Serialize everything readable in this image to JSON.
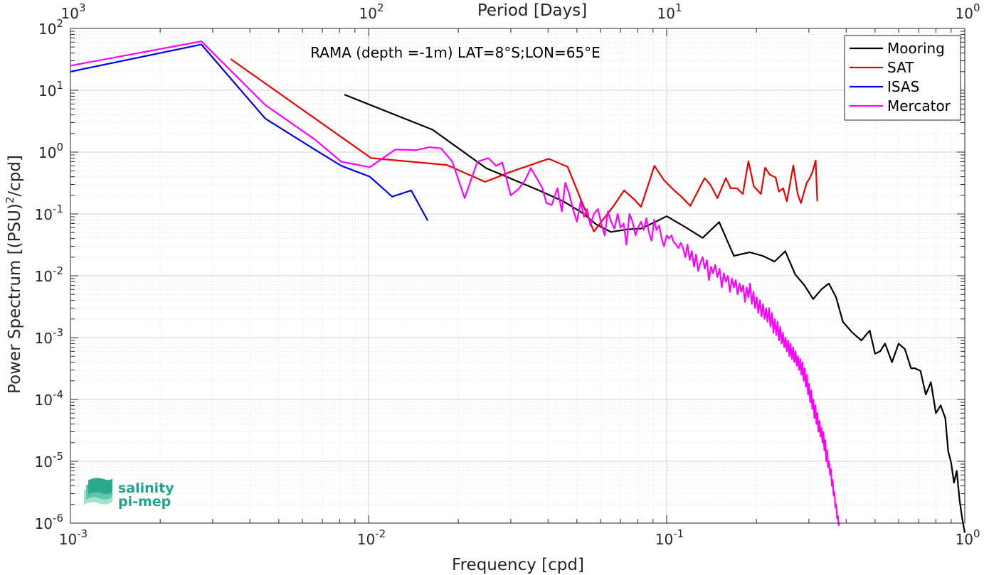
{
  "chart_data": {
    "type": "line",
    "title": "",
    "annotation": "RAMA (depth =-1m) LAT=8°S;LON=65°E",
    "xlabel": "Frequency [cpd]",
    "ylabel": "Power Spectrum [(PSU)²/cpd]",
    "top_xlabel": "Period [Days]",
    "xscale": "log",
    "yscale": "log",
    "xlim": [
      0.001,
      1
    ],
    "ylim": [
      1e-06,
      100
    ],
    "grid": true,
    "legend_position": "top-right",
    "x_ticks": [
      {
        "base": "10",
        "exp": "-3"
      },
      {
        "base": "10",
        "exp": "-2"
      },
      {
        "base": "10",
        "exp": "-1"
      },
      {
        "base": "10",
        "exp": "0"
      }
    ],
    "top_ticks": [
      {
        "base": "10",
        "exp": "3"
      },
      {
        "base": "10",
        "exp": "2"
      },
      {
        "base": "10",
        "exp": "1"
      },
      {
        "base": "10",
        "exp": "0"
      }
    ],
    "y_ticks": [
      {
        "base": "10",
        "exp": "2"
      },
      {
        "base": "10",
        "exp": "1"
      },
      {
        "base": "10",
        "exp": "0"
      },
      {
        "base": "10",
        "exp": "-1"
      },
      {
        "base": "10",
        "exp": "-2"
      },
      {
        "base": "10",
        "exp": "-3"
      },
      {
        "base": "10",
        "exp": "-4"
      },
      {
        "base": "10",
        "exp": "-5"
      },
      {
        "base": "10",
        "exp": "-6"
      }
    ],
    "series": [
      {
        "name": "Mooring",
        "color": "#000000",
        "points": [
          [
            0.0083,
            8.5
          ],
          [
            0.0164,
            2.3
          ],
          [
            0.0248,
            0.55
          ],
          [
            0.0373,
            0.24
          ],
          [
            0.045,
            0.16
          ],
          [
            0.052,
            0.105
          ],
          [
            0.058,
            0.068
          ],
          [
            0.065,
            0.051
          ],
          [
            0.073,
            0.056
          ],
          [
            0.082,
            0.058
          ],
          [
            0.092,
            0.075
          ],
          [
            0.1,
            0.092
          ],
          [
            0.115,
            0.062
          ],
          [
            0.132,
            0.041
          ],
          [
            0.15,
            0.074
          ],
          [
            0.168,
            0.021
          ],
          [
            0.19,
            0.024
          ],
          [
            0.21,
            0.021
          ],
          [
            0.23,
            0.017
          ],
          [
            0.25,
            0.025
          ],
          [
            0.27,
            0.0105
          ],
          [
            0.29,
            0.007
          ],
          [
            0.31,
            0.0042
          ],
          [
            0.33,
            0.006
          ],
          [
            0.35,
            0.0075
          ],
          [
            0.37,
            0.0045
          ],
          [
            0.39,
            0.0018
          ],
          [
            0.42,
            0.0012
          ],
          [
            0.45,
            0.0009
          ],
          [
            0.48,
            0.0013
          ],
          [
            0.5,
            0.00055
          ],
          [
            0.52,
            0.0006
          ],
          [
            0.54,
            0.0008
          ],
          [
            0.57,
            0.0004
          ],
          [
            0.6,
            0.0008
          ],
          [
            0.63,
            0.00065
          ],
          [
            0.66,
            0.00032
          ],
          [
            0.68,
            0.00032
          ],
          [
            0.71,
            0.00029
          ],
          [
            0.74,
            0.00012
          ],
          [
            0.77,
            0.00019
          ],
          [
            0.8,
            6e-05
          ],
          [
            0.83,
            8e-05
          ],
          [
            0.86,
            5e-05
          ],
          [
            0.88,
            1.45e-05
          ],
          [
            0.9,
            9.5e-06
          ],
          [
            0.92,
            4.5e-06
          ],
          [
            0.94,
            7e-06
          ],
          [
            0.96,
            2.4e-06
          ],
          [
            0.98,
            1.2e-06
          ],
          [
            1.0,
            7e-07
          ]
        ]
      },
      {
        "name": "SAT",
        "color": "#ee0000",
        "points": [
          [
            0.00345,
            32
          ],
          [
            0.0102,
            0.8
          ],
          [
            0.0183,
            0.62
          ],
          [
            0.0246,
            0.33
          ],
          [
            0.03,
            0.48
          ],
          [
            0.0402,
            0.78
          ],
          [
            0.0465,
            0.58
          ],
          [
            0.057,
            0.052
          ],
          [
            0.066,
            0.13
          ],
          [
            0.072,
            0.24
          ],
          [
            0.078,
            0.17
          ],
          [
            0.082,
            0.13
          ],
          [
            0.091,
            0.6
          ],
          [
            0.098,
            0.35
          ],
          [
            0.106,
            0.24
          ],
          [
            0.112,
            0.19
          ],
          [
            0.12,
            0.135
          ],
          [
            0.134,
            0.38
          ],
          [
            0.14,
            0.3
          ],
          [
            0.148,
            0.18
          ],
          [
            0.158,
            0.38
          ],
          [
            0.164,
            0.26
          ],
          [
            0.172,
            0.26
          ],
          [
            0.18,
            0.21
          ],
          [
            0.188,
            0.71
          ],
          [
            0.196,
            0.28
          ],
          [
            0.207,
            0.21
          ],
          [
            0.214,
            0.56
          ],
          [
            0.222,
            0.43
          ],
          [
            0.232,
            0.39
          ],
          [
            0.238,
            0.23
          ],
          [
            0.246,
            0.26
          ],
          [
            0.253,
            0.16
          ],
          [
            0.266,
            0.61
          ],
          [
            0.275,
            0.21
          ],
          [
            0.282,
            0.15
          ],
          [
            0.295,
            0.32
          ],
          [
            0.302,
            0.38
          ],
          [
            0.308,
            0.47
          ],
          [
            0.316,
            0.73
          ],
          [
            0.32,
            0.16
          ]
        ]
      },
      {
        "name": "ISAS",
        "color": "#0000ee",
        "points": [
          [
            0.001,
            20
          ],
          [
            0.00275,
            55
          ],
          [
            0.0045,
            3.5
          ],
          [
            0.0066,
            1.1
          ],
          [
            0.0081,
            0.6
          ],
          [
            0.0101,
            0.4
          ],
          [
            0.012,
            0.19
          ],
          [
            0.0139,
            0.24
          ],
          [
            0.0158,
            0.078
          ]
        ]
      },
      {
        "name": "Mercator",
        "color": "#ff00ff",
        "points": [
          [
            0.001,
            25
          ],
          [
            0.00275,
            62
          ],
          [
            0.0045,
            5.8
          ],
          [
            0.0066,
            1.6
          ],
          [
            0.0081,
            0.7
          ],
          [
            0.0101,
            0.57
          ],
          [
            0.0123,
            1.1
          ],
          [
            0.0145,
            1.08
          ],
          [
            0.016,
            1.2
          ],
          [
            0.0175,
            1.15
          ],
          [
            0.0191,
            0.7
          ],
          [
            0.021,
            0.18
          ],
          [
            0.0232,
            0.7
          ],
          [
            0.0252,
            0.8
          ],
          [
            0.0268,
            0.6
          ],
          [
            0.0281,
            0.68
          ],
          [
            0.03,
            0.2
          ],
          [
            0.0318,
            0.25
          ],
          [
            0.0335,
            0.35
          ],
          [
            0.035,
            0.55
          ],
          [
            0.037,
            0.35
          ],
          [
            0.0383,
            0.26
          ],
          [
            0.0395,
            0.15
          ],
          [
            0.0412,
            0.14
          ],
          [
            0.043,
            0.26
          ],
          [
            0.0445,
            0.11
          ],
          [
            0.0457,
            0.32
          ],
          [
            0.047,
            0.22
          ],
          [
            0.0485,
            0.12
          ],
          [
            0.05,
            0.075
          ],
          [
            0.0515,
            0.16
          ],
          [
            0.0528,
            0.09
          ],
          [
            0.054,
            0.12
          ],
          [
            0.0555,
            0.065
          ],
          [
            0.057,
            0.1
          ],
          [
            0.0588,
            0.12
          ],
          [
            0.0603,
            0.07
          ],
          [
            0.062,
            0.045
          ],
          [
            0.0635,
            0.11
          ],
          [
            0.0651,
            0.075
          ],
          [
            0.0668,
            0.058
          ],
          [
            0.0685,
            0.1
          ],
          [
            0.07,
            0.06
          ],
          [
            0.0717,
            0.07
          ],
          [
            0.0733,
            0.032
          ],
          [
            0.075,
            0.1
          ],
          [
            0.0768,
            0.075
          ],
          [
            0.0786,
            0.045
          ],
          [
            0.0802,
            0.06
          ],
          [
            0.082,
            0.075
          ],
          [
            0.0838,
            0.055
          ],
          [
            0.0855,
            0.085
          ],
          [
            0.0872,
            0.05
          ],
          [
            0.089,
            0.037
          ],
          [
            0.0908,
            0.08
          ],
          [
            0.0925,
            0.055
          ],
          [
            0.0944,
            0.065
          ],
          [
            0.0962,
            0.04
          ],
          [
            0.098,
            0.03
          ],
          [
            0.1,
            0.045
          ],
          [
            0.1018,
            0.04
          ],
          [
            0.1038,
            0.045
          ],
          [
            0.1056,
            0.035
          ],
          [
            0.1075,
            0.032
          ],
          [
            0.1095,
            0.028
          ],
          [
            0.1115,
            0.034
          ],
          [
            0.1135,
            0.028
          ],
          [
            0.1155,
            0.02
          ],
          [
            0.1175,
            0.032
          ],
          [
            0.1195,
            0.018
          ],
          [
            0.1215,
            0.025
          ],
          [
            0.1235,
            0.014
          ],
          [
            0.1255,
            0.022
          ],
          [
            0.1275,
            0.012
          ],
          [
            0.1297,
            0.016
          ],
          [
            0.132,
            0.02
          ],
          [
            0.1342,
            0.013
          ],
          [
            0.1364,
            0.018
          ],
          [
            0.1386,
            0.0085
          ],
          [
            0.1408,
            0.014
          ],
          [
            0.143,
            0.011
          ],
          [
            0.1455,
            0.015
          ],
          [
            0.148,
            0.0095
          ],
          [
            0.1505,
            0.013
          ],
          [
            0.153,
            0.0065
          ],
          [
            0.1555,
            0.011
          ],
          [
            0.158,
            0.008
          ],
          [
            0.1605,
            0.01
          ],
          [
            0.163,
            0.0055
          ],
          [
            0.1655,
            0.009
          ],
          [
            0.168,
            0.0065
          ],
          [
            0.1705,
            0.0085
          ],
          [
            0.173,
            0.005
          ],
          [
            0.1755,
            0.0075
          ],
          [
            0.178,
            0.0055
          ],
          [
            0.1805,
            0.007
          ],
          [
            0.183,
            0.0038
          ],
          [
            0.1855,
            0.0065
          ],
          [
            0.188,
            0.0045
          ],
          [
            0.1905,
            0.0075
          ],
          [
            0.193,
            0.0035
          ],
          [
            0.1955,
            0.0055
          ],
          [
            0.198,
            0.003
          ],
          [
            0.2005,
            0.0045
          ],
          [
            0.203,
            0.0025
          ],
          [
            0.2055,
            0.004
          ],
          [
            0.208,
            0.0022
          ],
          [
            0.2105,
            0.0035
          ],
          [
            0.213,
            0.002
          ],
          [
            0.2155,
            0.003
          ],
          [
            0.218,
            0.0018
          ],
          [
            0.2205,
            0.003
          ],
          [
            0.223,
            0.0015
          ],
          [
            0.2255,
            0.0025
          ],
          [
            0.228,
            0.0012
          ],
          [
            0.2305,
            0.002
          ],
          [
            0.233,
            0.0011
          ],
          [
            0.2355,
            0.0018
          ],
          [
            0.238,
            0.0009
          ],
          [
            0.2405,
            0.0015
          ],
          [
            0.243,
            0.0008
          ],
          [
            0.2455,
            0.0012
          ],
          [
            0.248,
            0.0007
          ],
          [
            0.2505,
            0.001
          ],
          [
            0.253,
            0.0006
          ],
          [
            0.2555,
            0.0009
          ],
          [
            0.258,
            0.0005
          ],
          [
            0.2605,
            0.0008
          ],
          [
            0.263,
            0.00045
          ],
          [
            0.2655,
            0.0007
          ],
          [
            0.268,
            0.0004
          ],
          [
            0.2705,
            0.0006
          ],
          [
            0.273,
            0.00035
          ],
          [
            0.2755,
            0.0005
          ],
          [
            0.278,
            0.0003
          ],
          [
            0.2805,
            0.00045
          ],
          [
            0.283,
            0.00025
          ],
          [
            0.2855,
            0.0004
          ],
          [
            0.288,
            0.0002
          ],
          [
            0.2905,
            0.00032
          ],
          [
            0.293,
            0.00016
          ],
          [
            0.2955,
            0.00025
          ],
          [
            0.298,
            0.00012
          ],
          [
            0.3005,
            0.00018
          ],
          [
            0.303,
            9e-05
          ],
          [
            0.3055,
            0.00014
          ],
          [
            0.308,
            7e-05
          ],
          [
            0.3105,
            0.0001
          ],
          [
            0.313,
            5e-05
          ],
          [
            0.3155,
            8e-05
          ],
          [
            0.318,
            4e-05
          ],
          [
            0.3205,
            6e-05
          ],
          [
            0.323,
            3e-05
          ],
          [
            0.3255,
            4.5e-05
          ],
          [
            0.328,
            2.5e-05
          ],
          [
            0.3305,
            3.5e-05
          ],
          [
            0.333,
            2e-05
          ],
          [
            0.3355,
            3e-05
          ],
          [
            0.338,
            1.5e-05
          ],
          [
            0.3405,
            2.2e-05
          ],
          [
            0.343,
            1e-05
          ],
          [
            0.3455,
            1.5e-05
          ],
          [
            0.348,
            8e-06
          ],
          [
            0.3505,
            1e-05
          ],
          [
            0.353,
            6e-06
          ],
          [
            0.3555,
            7.5e-06
          ],
          [
            0.358,
            4e-06
          ],
          [
            0.3605,
            5e-06
          ],
          [
            0.363,
            2.8e-06
          ],
          [
            0.3655,
            3.2e-06
          ],
          [
            0.368,
            1.8e-06
          ],
          [
            0.3705,
            2e-06
          ],
          [
            0.373,
            1.2e-06
          ],
          [
            0.3755,
            1.3e-06
          ],
          [
            0.378,
            9e-07
          ]
        ]
      }
    ]
  },
  "logo": {
    "line1": "salinity",
    "line2": "pi-mep"
  }
}
